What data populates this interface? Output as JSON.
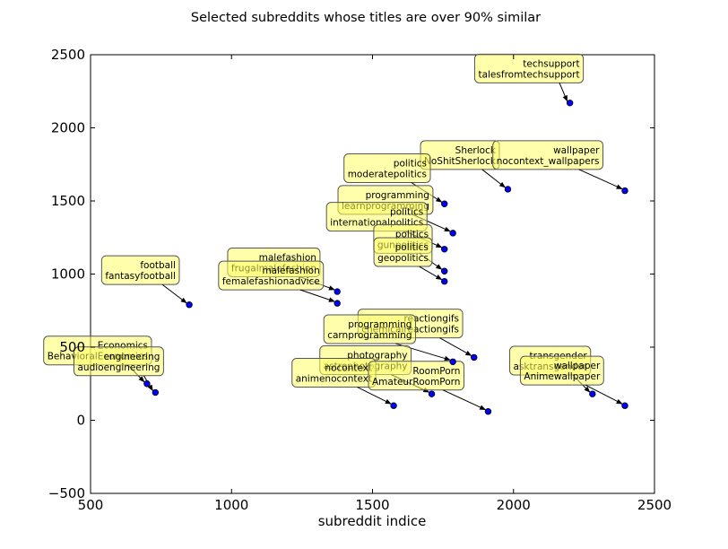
{
  "chart_data": {
    "type": "scatter",
    "title": "Selected subreddits whose titles are over 90% similar",
    "xlabel": "subreddit indice",
    "ylabel": "",
    "xlim": [
      500,
      2500
    ],
    "ylim": [
      -500,
      2500
    ],
    "xticks": [
      500,
      1000,
      1500,
      2000,
      2500
    ],
    "yticks": [
      -500,
      0,
      500,
      1000,
      1500,
      2000,
      2500
    ],
    "grid": false,
    "marker_color": "#0000ff",
    "annotation_box_color": "#ffff66",
    "points": [
      {
        "x": 2200,
        "y": 2170,
        "label": [
          "techsupport",
          "talesfromtechsupport"
        ],
        "label_at": [
          2055,
          2406
        ]
      },
      {
        "x": 1980,
        "y": 1580,
        "label": [
          "Sherlock",
          "NoShitSherlock"
        ],
        "label_at": [
          1810,
          1814
        ]
      },
      {
        "x": 2395,
        "y": 1570,
        "label": [
          "wallpaper",
          "nocontext_wallpapers"
        ],
        "label_at": [
          2122,
          1814
        ]
      },
      {
        "x": 1755,
        "y": 1480,
        "label": [
          "politics",
          "moderatepolitics"
        ],
        "label_at": [
          1552,
          1724
        ]
      },
      {
        "x": 1785,
        "y": 1280,
        "label": [
          "programming",
          "learnprogramming"
        ],
        "label_at": [
          1546,
          1507
        ]
      },
      {
        "x": 1755,
        "y": 1170,
        "label": [
          "politics",
          "internationalpolitics"
        ],
        "label_at": [
          1515,
          1392
        ]
      },
      {
        "x": 1755,
        "y": 1020,
        "label": [
          "politics",
          "gunpolitics"
        ],
        "label_at": [
          1608,
          1240
        ]
      },
      {
        "x": 1755,
        "y": 950,
        "label": [
          "politics",
          "geopolitics"
        ],
        "label_at": [
          1608,
          1150
        ]
      },
      {
        "x": 1375,
        "y": 880,
        "label": [
          "malefashion",
          "frugalmalefashion"
        ],
        "label_at": [
          1150,
          1080
        ]
      },
      {
        "x": 1375,
        "y": 800,
        "label": [
          "malefashion",
          "femalefashionadvice"
        ],
        "label_at": [
          1140,
          990
        ]
      },
      {
        "x": 850,
        "y": 790,
        "label": [
          "football",
          "fantasyfootball"
        ],
        "label_at": [
          677,
          1027
        ]
      },
      {
        "x": 1860,
        "y": 430,
        "label": [
          "reactiongifs",
          "chemicalreactiongifs"
        ],
        "label_at": [
          1634,
          662
        ]
      },
      {
        "x": 1785,
        "y": 400,
        "label": [
          "programming",
          "carnprogramming"
        ],
        "label_at": [
          1490,
          623
        ]
      },
      {
        "x": 700,
        "y": 250,
        "label": [
          "Economics",
          "BehavioralEconomics"
        ],
        "label_at": [
          525,
          477
        ]
      },
      {
        "x": 730,
        "y": 190,
        "label": [
          "engineering",
          "audioengineering"
        ],
        "label_at": [
          600,
          403
        ]
      },
      {
        "x": 1710,
        "y": 180,
        "label": [
          "photography",
          "astrophotography"
        ],
        "label_at": [
          1475,
          411
        ]
      },
      {
        "x": 1575,
        "y": 100,
        "label": [
          "nocontext",
          "animenocontext"
        ],
        "label_at": [
          1363,
          325
        ]
      },
      {
        "x": 1910,
        "y": 60,
        "label": [
          "RoomPorn",
          "AmateurRoomPorn"
        ],
        "label_at": [
          1655,
          305
        ]
      },
      {
        "x": 2280,
        "y": 180,
        "label": [
          "transgender",
          "asktransgender"
        ],
        "label_at": [
          2130,
          408
        ]
      },
      {
        "x": 2395,
        "y": 100,
        "label": [
          "wallpaper",
          "Animewallpaper"
        ],
        "label_at": [
          2172,
          340
        ]
      }
    ]
  }
}
